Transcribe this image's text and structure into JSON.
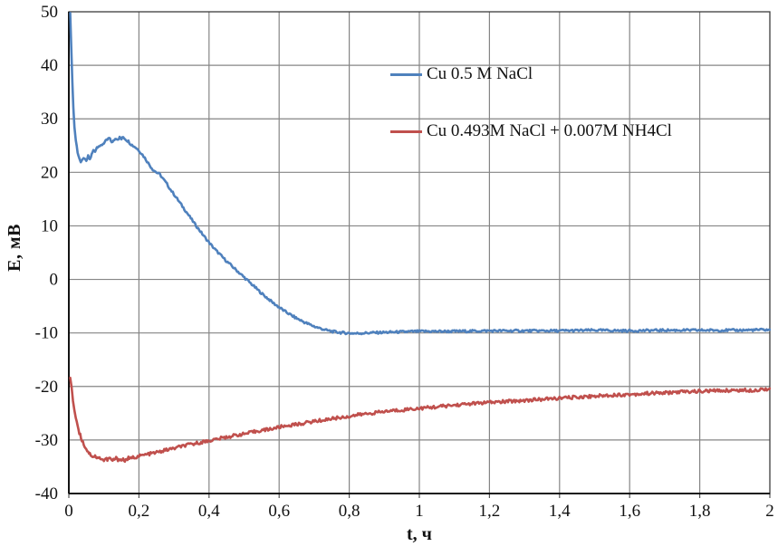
{
  "chart_data": {
    "type": "line",
    "title": "",
    "xlabel": "t, ч",
    "ylabel": "E, мВ",
    "xlim": [
      0,
      2
    ],
    "ylim": [
      -40,
      50
    ],
    "grid": true,
    "legend_position": "inside-upper-right",
    "colors": {
      "gridline": "#858585",
      "axis": "#000000",
      "border": "#3c3c3c",
      "text": "#111111",
      "background": "#ffffff"
    },
    "xtick_values": [
      0,
      0.2,
      0.4,
      0.6,
      0.8,
      1,
      1.2,
      1.4,
      1.6,
      1.8,
      2
    ],
    "xtick_labels": [
      "0",
      "0,2",
      "0,4",
      "0,6",
      "0,8",
      "1",
      "1,2",
      "1,4",
      "1,6",
      "1,8",
      "2"
    ],
    "ytick_values": [
      50,
      40,
      30,
      20,
      10,
      0,
      -10,
      -20,
      -30,
      -40
    ],
    "ytick_labels": [
      "50",
      "40",
      "30",
      "20",
      "10",
      "0",
      "-10",
      "-20",
      "-30",
      "-40"
    ],
    "series": [
      {
        "name": "Cu 0.5 M NaCl",
        "color": "#4F81BD",
        "noise": 0.22,
        "points": [
          [
            0.004,
            50
          ],
          [
            0.007,
            43
          ],
          [
            0.01,
            37
          ],
          [
            0.013,
            32
          ],
          [
            0.016,
            28.5
          ],
          [
            0.02,
            26
          ],
          [
            0.025,
            23.8
          ],
          [
            0.03,
            22.6
          ],
          [
            0.034,
            21.7
          ],
          [
            0.038,
            22.2
          ],
          [
            0.042,
            22.8
          ],
          [
            0.046,
            22.3
          ],
          [
            0.05,
            22.0
          ],
          [
            0.055,
            23.0
          ],
          [
            0.06,
            22.4
          ],
          [
            0.065,
            23.3
          ],
          [
            0.07,
            24.1
          ],
          [
            0.075,
            24.0
          ],
          [
            0.08,
            24.7
          ],
          [
            0.085,
            25.0
          ],
          [
            0.09,
            24.8
          ],
          [
            0.095,
            25.2
          ],
          [
            0.1,
            25.5
          ],
          [
            0.105,
            25.8
          ],
          [
            0.11,
            26.1
          ],
          [
            0.115,
            26.4
          ],
          [
            0.12,
            25.9
          ],
          [
            0.125,
            25.6
          ],
          [
            0.13,
            26.1
          ],
          [
            0.135,
            26.4
          ],
          [
            0.14,
            26.2
          ],
          [
            0.145,
            26.5
          ],
          [
            0.15,
            26.2
          ],
          [
            0.155,
            26.6
          ],
          [
            0.16,
            26.3
          ],
          [
            0.165,
            26.0
          ],
          [
            0.17,
            25.8
          ],
          [
            0.175,
            25.4
          ],
          [
            0.18,
            25.1
          ],
          [
            0.19,
            24.7
          ],
          [
            0.2,
            24.1
          ],
          [
            0.21,
            23.3
          ],
          [
            0.22,
            22.4
          ],
          [
            0.23,
            21.4
          ],
          [
            0.24,
            20.5
          ],
          [
            0.25,
            20.0
          ],
          [
            0.26,
            19.6
          ],
          [
            0.27,
            18.7
          ],
          [
            0.28,
            17.8
          ],
          [
            0.29,
            16.8
          ],
          [
            0.3,
            15.9
          ],
          [
            0.315,
            14.5
          ],
          [
            0.33,
            13.1
          ],
          [
            0.345,
            11.7
          ],
          [
            0.36,
            10.3
          ],
          [
            0.375,
            9.0
          ],
          [
            0.39,
            7.7
          ],
          [
            0.405,
            6.5
          ],
          [
            0.42,
            5.4
          ],
          [
            0.435,
            4.4
          ],
          [
            0.45,
            3.4
          ],
          [
            0.465,
            2.5
          ],
          [
            0.48,
            1.6
          ],
          [
            0.495,
            0.7
          ],
          [
            0.51,
            -0.2
          ],
          [
            0.525,
            -1.1
          ],
          [
            0.54,
            -2.0
          ],
          [
            0.555,
            -2.9
          ],
          [
            0.57,
            -3.7
          ],
          [
            0.585,
            -4.5
          ],
          [
            0.6,
            -5.2
          ],
          [
            0.615,
            -5.9
          ],
          [
            0.63,
            -6.5
          ],
          [
            0.645,
            -7.1
          ],
          [
            0.66,
            -7.6
          ],
          [
            0.675,
            -8.1
          ],
          [
            0.69,
            -8.5
          ],
          [
            0.705,
            -8.9
          ],
          [
            0.72,
            -9.2
          ],
          [
            0.735,
            -9.5
          ],
          [
            0.75,
            -9.7
          ],
          [
            0.77,
            -9.9
          ],
          [
            0.79,
            -10.0
          ],
          [
            0.82,
            -10.1
          ],
          [
            0.85,
            -10.0
          ],
          [
            0.9,
            -9.9
          ],
          [
            0.95,
            -9.8
          ],
          [
            1.0,
            -9.7
          ],
          [
            1.1,
            -9.7
          ],
          [
            1.2,
            -9.6
          ],
          [
            1.3,
            -9.6
          ],
          [
            1.4,
            -9.6
          ],
          [
            1.5,
            -9.5
          ],
          [
            1.6,
            -9.6
          ],
          [
            1.7,
            -9.5
          ],
          [
            1.8,
            -9.5
          ],
          [
            1.9,
            -9.5
          ],
          [
            2.0,
            -9.4
          ]
        ]
      },
      {
        "name": "Cu 0.493M NaCl + 0.007M NH4Cl",
        "color": "#C0504D",
        "noise": 0.3,
        "points": [
          [
            0.004,
            -18.3
          ],
          [
            0.008,
            -20.5
          ],
          [
            0.012,
            -22.5
          ],
          [
            0.016,
            -24.3
          ],
          [
            0.02,
            -25.8
          ],
          [
            0.025,
            -27.3
          ],
          [
            0.03,
            -28.6
          ],
          [
            0.035,
            -29.6
          ],
          [
            0.04,
            -30.4
          ],
          [
            0.045,
            -31.1
          ],
          [
            0.05,
            -31.7
          ],
          [
            0.055,
            -32.2
          ],
          [
            0.06,
            -32.6
          ],
          [
            0.065,
            -32.9
          ],
          [
            0.07,
            -33.1
          ],
          [
            0.075,
            -33.0
          ],
          [
            0.08,
            -33.3
          ],
          [
            0.085,
            -33.5
          ],
          [
            0.09,
            -33.3
          ],
          [
            0.095,
            -33.6
          ],
          [
            0.1,
            -33.8
          ],
          [
            0.105,
            -33.5
          ],
          [
            0.11,
            -33.7
          ],
          [
            0.115,
            -33.4
          ],
          [
            0.12,
            -33.6
          ],
          [
            0.125,
            -33.9
          ],
          [
            0.13,
            -33.6
          ],
          [
            0.135,
            -33.4
          ],
          [
            0.14,
            -33.7
          ],
          [
            0.145,
            -33.5
          ],
          [
            0.15,
            -33.8
          ],
          [
            0.155,
            -33.6
          ],
          [
            0.16,
            -33.9
          ],
          [
            0.165,
            -33.6
          ],
          [
            0.17,
            -33.4
          ],
          [
            0.175,
            -33.6
          ],
          [
            0.18,
            -33.3
          ],
          [
            0.19,
            -33.2
          ],
          [
            0.2,
            -33.0
          ],
          [
            0.215,
            -32.8
          ],
          [
            0.23,
            -32.6
          ],
          [
            0.245,
            -32.4
          ],
          [
            0.26,
            -32.2
          ],
          [
            0.275,
            -31.9
          ],
          [
            0.29,
            -31.7
          ],
          [
            0.305,
            -31.5
          ],
          [
            0.32,
            -31.2
          ],
          [
            0.335,
            -31.0
          ],
          [
            0.35,
            -30.8
          ],
          [
            0.365,
            -30.6
          ],
          [
            0.38,
            -30.4
          ],
          [
            0.395,
            -30.2
          ],
          [
            0.41,
            -30.0
          ],
          [
            0.425,
            -29.8
          ],
          [
            0.44,
            -29.6
          ],
          [
            0.455,
            -29.4
          ],
          [
            0.47,
            -29.2
          ],
          [
            0.485,
            -29.0
          ],
          [
            0.5,
            -28.9
          ],
          [
            0.52,
            -28.6
          ],
          [
            0.54,
            -28.3
          ],
          [
            0.56,
            -28.1
          ],
          [
            0.58,
            -27.9
          ],
          [
            0.6,
            -27.6
          ],
          [
            0.625,
            -27.3
          ],
          [
            0.65,
            -27.1
          ],
          [
            0.675,
            -26.8
          ],
          [
            0.7,
            -26.5
          ],
          [
            0.725,
            -26.3
          ],
          [
            0.75,
            -26.0
          ],
          [
            0.775,
            -25.8
          ],
          [
            0.8,
            -25.6
          ],
          [
            0.825,
            -25.3
          ],
          [
            0.85,
            -25.1
          ],
          [
            0.875,
            -24.9
          ],
          [
            0.9,
            -24.7
          ],
          [
            0.925,
            -24.5
          ],
          [
            0.95,
            -24.4
          ],
          [
            0.975,
            -24.2
          ],
          [
            1.0,
            -24.1
          ],
          [
            1.05,
            -23.8
          ],
          [
            1.1,
            -23.5
          ],
          [
            1.15,
            -23.2
          ],
          [
            1.2,
            -23.0
          ],
          [
            1.25,
            -22.8
          ],
          [
            1.3,
            -22.6
          ],
          [
            1.35,
            -22.4
          ],
          [
            1.4,
            -22.2
          ],
          [
            1.45,
            -22.0
          ],
          [
            1.5,
            -21.8
          ],
          [
            1.55,
            -21.6
          ],
          [
            1.6,
            -21.5
          ],
          [
            1.65,
            -21.3
          ],
          [
            1.7,
            -21.2
          ],
          [
            1.75,
            -21.0
          ],
          [
            1.8,
            -20.9
          ],
          [
            1.85,
            -20.8
          ],
          [
            1.9,
            -20.7
          ],
          [
            1.95,
            -20.7
          ],
          [
            2.0,
            -20.4
          ]
        ]
      }
    ]
  }
}
